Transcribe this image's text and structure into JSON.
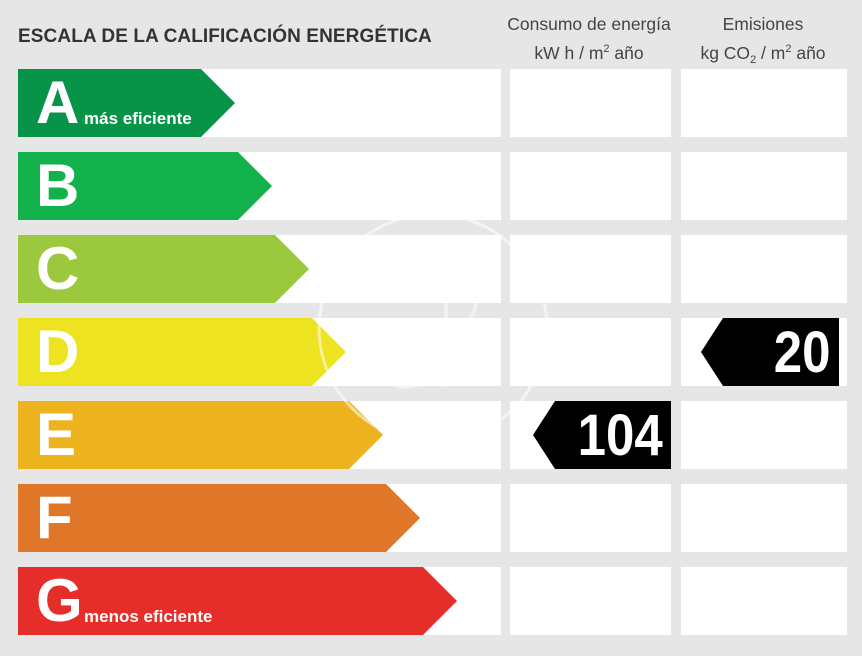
{
  "header": {
    "title": "ESCALA DE LA CALIFICACIÓN ENERGÉTICA",
    "consumo_line1": "Consumo de energía",
    "consumo_line2_pre": "kW h  / m",
    "consumo_line2_sup": "2",
    "consumo_line2_post": " año",
    "emisiones_line1": "Emisiones",
    "emisiones_line2_pre": "kg CO",
    "emisiones_line2_sub": "2",
    "emisiones_line2_mid": "  / m",
    "emisiones_line2_sup": "2",
    "emisiones_line2_post": " año"
  },
  "ratings": [
    {
      "letter": "A",
      "sublabel": "más eficiente",
      "color": "#079448"
    },
    {
      "letter": "B",
      "sublabel": "",
      "color": "#12b14c"
    },
    {
      "letter": "C",
      "sublabel": "",
      "color": "#9bc83c"
    },
    {
      "letter": "D",
      "sublabel": "",
      "color": "#ede320"
    },
    {
      "letter": "E",
      "sublabel": "",
      "color": "#edb31f"
    },
    {
      "letter": "F",
      "sublabel": "",
      "color": "#e07628"
    },
    {
      "letter": "G",
      "sublabel": "menos eficiente",
      "color": "#e52d29"
    }
  ],
  "consumo": {
    "value": "104",
    "rating": "E"
  },
  "emisiones": {
    "value": "20",
    "rating": "D"
  }
}
